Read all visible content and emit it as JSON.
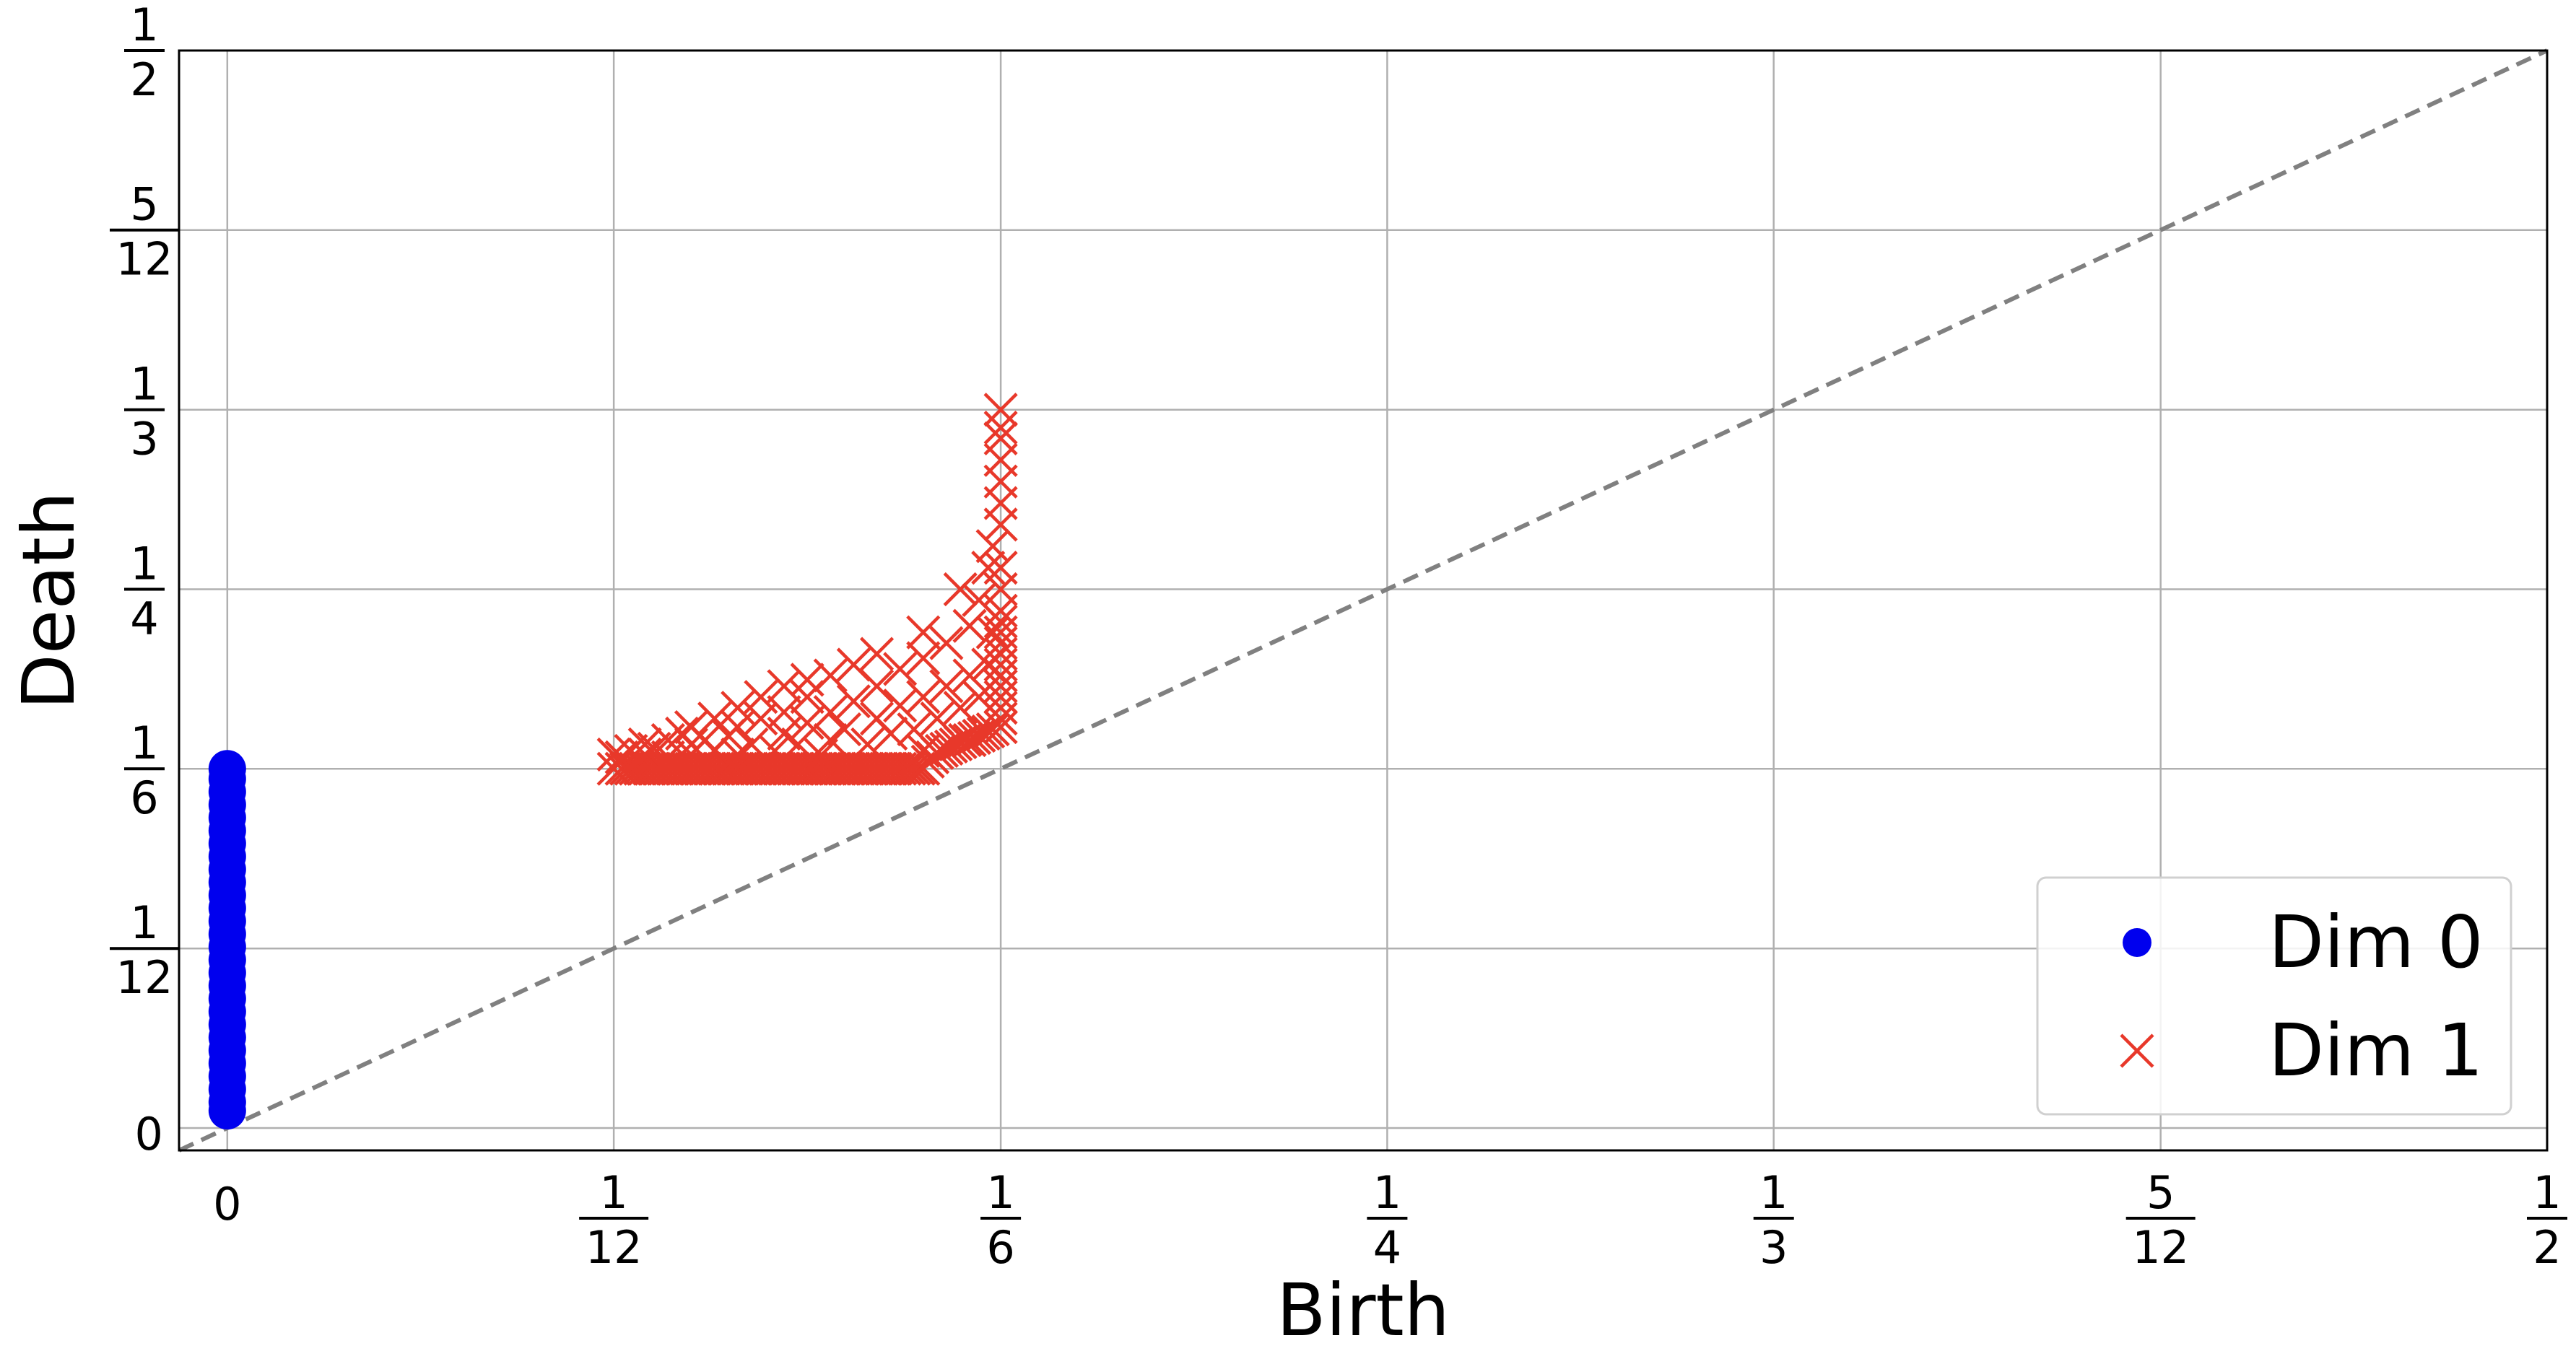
{
  "chart_data": {
    "type": "scatter",
    "xlabel": "Birth",
    "ylabel": "Death",
    "xlim": [
      -0.0104,
      0.5
    ],
    "ylim": [
      -0.0104,
      0.5
    ],
    "grid": true,
    "diagonal": {
      "style": "dashed",
      "color": "#808080"
    },
    "x_ticks": [
      {
        "value": 0,
        "label": "0"
      },
      {
        "value": 0.0833,
        "num": "1",
        "den": "12"
      },
      {
        "value": 0.1667,
        "num": "1",
        "den": "6"
      },
      {
        "value": 0.25,
        "num": "1",
        "den": "4"
      },
      {
        "value": 0.3333,
        "num": "1",
        "den": "3"
      },
      {
        "value": 0.4167,
        "num": "5",
        "den": "12"
      },
      {
        "value": 0.5,
        "num": "1",
        "den": "2"
      }
    ],
    "y_ticks": [
      {
        "value": 0,
        "label": "0"
      },
      {
        "value": 0.0833,
        "num": "1",
        "den": "12"
      },
      {
        "value": 0.1667,
        "num": "1",
        "den": "6"
      },
      {
        "value": 0.25,
        "num": "1",
        "den": "4"
      },
      {
        "value": 0.3333,
        "num": "1",
        "den": "3"
      },
      {
        "value": 0.4167,
        "num": "5",
        "den": "12"
      },
      {
        "value": 0.5,
        "num": "1",
        "den": "2"
      }
    ],
    "legend": {
      "position": "lower-right"
    },
    "series": [
      {
        "name": "Dim 0",
        "marker": "circle",
        "color": "#0000ee",
        "points": [
          [
            0,
            0.008
          ],
          [
            0,
            0.012
          ],
          [
            0,
            0.018
          ],
          [
            0,
            0.024
          ],
          [
            0,
            0.03
          ],
          [
            0,
            0.036
          ],
          [
            0,
            0.042
          ],
          [
            0,
            0.048
          ],
          [
            0,
            0.054
          ],
          [
            0,
            0.06
          ],
          [
            0,
            0.066
          ],
          [
            0,
            0.072
          ],
          [
            0,
            0.078
          ],
          [
            0,
            0.084
          ],
          [
            0,
            0.09
          ],
          [
            0,
            0.096
          ],
          [
            0,
            0.102
          ],
          [
            0,
            0.108
          ],
          [
            0,
            0.114
          ],
          [
            0,
            0.12
          ],
          [
            0,
            0.126
          ],
          [
            0,
            0.132
          ],
          [
            0,
            0.138
          ],
          [
            0,
            0.144
          ],
          [
            0,
            0.15
          ],
          [
            0,
            0.156
          ],
          [
            0,
            0.162
          ],
          [
            0,
            0.1667
          ]
        ]
      },
      {
        "name": "Dim 1",
        "marker": "x",
        "color": "#e8382a",
        "points": [
          [
            0.0833,
            0.1667
          ],
          [
            0.0833,
            0.1733
          ],
          [
            0.085,
            0.1667
          ],
          [
            0.085,
            0.172
          ],
          [
            0.086,
            0.1667
          ],
          [
            0.087,
            0.1667
          ],
          [
            0.087,
            0.175
          ],
          [
            0.088,
            0.1667
          ],
          [
            0.089,
            0.1667
          ],
          [
            0.09,
            0.1667
          ],
          [
            0.09,
            0.1733
          ],
          [
            0.09,
            0.178
          ],
          [
            0.091,
            0.1667
          ],
          [
            0.092,
            0.1667
          ],
          [
            0.092,
            0.176
          ],
          [
            0.093,
            0.1667
          ],
          [
            0.094,
            0.1667
          ],
          [
            0.095,
            0.1667
          ],
          [
            0.095,
            0.172
          ],
          [
            0.095,
            0.18
          ],
          [
            0.096,
            0.1667
          ],
          [
            0.097,
            0.1667
          ],
          [
            0.098,
            0.1667
          ],
          [
            0.098,
            0.183
          ],
          [
            0.099,
            0.1667
          ],
          [
            0.1,
            0.1667
          ],
          [
            0.1,
            0.1733
          ],
          [
            0.1,
            0.178
          ],
          [
            0.1,
            0.186
          ],
          [
            0.101,
            0.1667
          ],
          [
            0.102,
            0.1667
          ],
          [
            0.103,
            0.1667
          ],
          [
            0.103,
            0.18
          ],
          [
            0.104,
            0.1667
          ],
          [
            0.105,
            0.1667
          ],
          [
            0.105,
            0.175
          ],
          [
            0.105,
            0.19
          ],
          [
            0.106,
            0.1667
          ],
          [
            0.107,
            0.1667
          ],
          [
            0.108,
            0.1667
          ],
          [
            0.108,
            0.182
          ],
          [
            0.109,
            0.1667
          ],
          [
            0.11,
            0.1667
          ],
          [
            0.11,
            0.1733
          ],
          [
            0.11,
            0.186
          ],
          [
            0.11,
            0.195
          ],
          [
            0.111,
            0.1667
          ],
          [
            0.112,
            0.1667
          ],
          [
            0.113,
            0.1667
          ],
          [
            0.113,
            0.178
          ],
          [
            0.114,
            0.1667
          ],
          [
            0.115,
            0.1667
          ],
          [
            0.115,
            0.19
          ],
          [
            0.115,
            0.2
          ],
          [
            0.116,
            0.1667
          ],
          [
            0.117,
            0.1667
          ],
          [
            0.118,
            0.1667
          ],
          [
            0.118,
            0.175
          ],
          [
            0.119,
            0.1667
          ],
          [
            0.12,
            0.1667
          ],
          [
            0.12,
            0.183
          ],
          [
            0.12,
            0.193
          ],
          [
            0.12,
            0.205
          ],
          [
            0.121,
            0.1667
          ],
          [
            0.122,
            0.1667
          ],
          [
            0.123,
            0.1667
          ],
          [
            0.123,
            0.178
          ],
          [
            0.124,
            0.1667
          ],
          [
            0.125,
            0.1667
          ],
          [
            0.125,
            0.188
          ],
          [
            0.125,
            0.2
          ],
          [
            0.125,
            0.208
          ],
          [
            0.126,
            0.1667
          ],
          [
            0.127,
            0.1667
          ],
          [
            0.128,
            0.1667
          ],
          [
            0.128,
            0.173
          ],
          [
            0.129,
            0.1667
          ],
          [
            0.13,
            0.1667
          ],
          [
            0.13,
            0.18
          ],
          [
            0.13,
            0.193
          ],
          [
            0.13,
            0.21
          ],
          [
            0.131,
            0.1667
          ],
          [
            0.132,
            0.1667
          ],
          [
            0.133,
            0.1667
          ],
          [
            0.133,
            0.185
          ],
          [
            0.134,
            0.1667
          ],
          [
            0.135,
            0.1667
          ],
          [
            0.135,
            0.198
          ],
          [
            0.135,
            0.215
          ],
          [
            0.136,
            0.1667
          ],
          [
            0.137,
            0.1667
          ],
          [
            0.138,
            0.1667
          ],
          [
            0.138,
            0.178
          ],
          [
            0.139,
            0.1667
          ],
          [
            0.14,
            0.1667
          ],
          [
            0.14,
            0.19
          ],
          [
            0.14,
            0.205
          ],
          [
            0.14,
            0.22
          ],
          [
            0.141,
            0.1667
          ],
          [
            0.142,
            0.1667
          ],
          [
            0.143,
            0.1667
          ],
          [
            0.143,
            0.183
          ],
          [
            0.144,
            0.1667
          ],
          [
            0.145,
            0.1667
          ],
          [
            0.145,
            0.196
          ],
          [
            0.145,
            0.213
          ],
          [
            0.146,
            0.1667
          ],
          [
            0.147,
            0.1667
          ],
          [
            0.148,
            0.1667
          ],
          [
            0.148,
            0.185
          ],
          [
            0.149,
            0.1667
          ],
          [
            0.15,
            0.1667
          ],
          [
            0.15,
            0.175
          ],
          [
            0.15,
            0.2
          ],
          [
            0.15,
            0.218
          ],
          [
            0.15,
            0.23
          ],
          [
            0.151,
            0.17
          ],
          [
            0.152,
            0.172
          ],
          [
            0.153,
            0.174
          ],
          [
            0.153,
            0.19
          ],
          [
            0.154,
            0.175
          ],
          [
            0.155,
            0.176
          ],
          [
            0.155,
            0.205
          ],
          [
            0.155,
            0.225
          ],
          [
            0.156,
            0.177
          ],
          [
            0.157,
            0.178
          ],
          [
            0.158,
            0.179
          ],
          [
            0.158,
            0.195
          ],
          [
            0.158,
            0.25
          ],
          [
            0.159,
            0.18
          ],
          [
            0.16,
            0.18
          ],
          [
            0.16,
            0.21
          ],
          [
            0.16,
            0.233
          ],
          [
            0.161,
            0.181
          ],
          [
            0.162,
            0.182
          ],
          [
            0.162,
            0.2
          ],
          [
            0.162,
            0.245
          ],
          [
            0.163,
            0.183
          ],
          [
            0.164,
            0.184
          ],
          [
            0.164,
            0.215
          ],
          [
            0.164,
            0.26
          ],
          [
            0.165,
            0.185
          ],
          [
            0.165,
            0.23
          ],
          [
            0.165,
            0.27
          ],
          [
            0.1667,
            0.186
          ],
          [
            0.1667,
            0.19
          ],
          [
            0.1667,
            0.195
          ],
          [
            0.1667,
            0.2
          ],
          [
            0.1667,
            0.205
          ],
          [
            0.1667,
            0.21
          ],
          [
            0.1667,
            0.215
          ],
          [
            0.1667,
            0.22
          ],
          [
            0.1667,
            0.225
          ],
          [
            0.1667,
            0.23
          ],
          [
            0.1667,
            0.235
          ],
          [
            0.1667,
            0.24
          ],
          [
            0.1667,
            0.25
          ],
          [
            0.1667,
            0.26
          ],
          [
            0.1667,
            0.28
          ],
          [
            0.1667,
            0.29
          ],
          [
            0.1667,
            0.3
          ],
          [
            0.1667,
            0.31
          ],
          [
            0.1667,
            0.32
          ],
          [
            0.1667,
            0.325
          ],
          [
            0.1667,
            0.3333
          ]
        ]
      }
    ]
  }
}
